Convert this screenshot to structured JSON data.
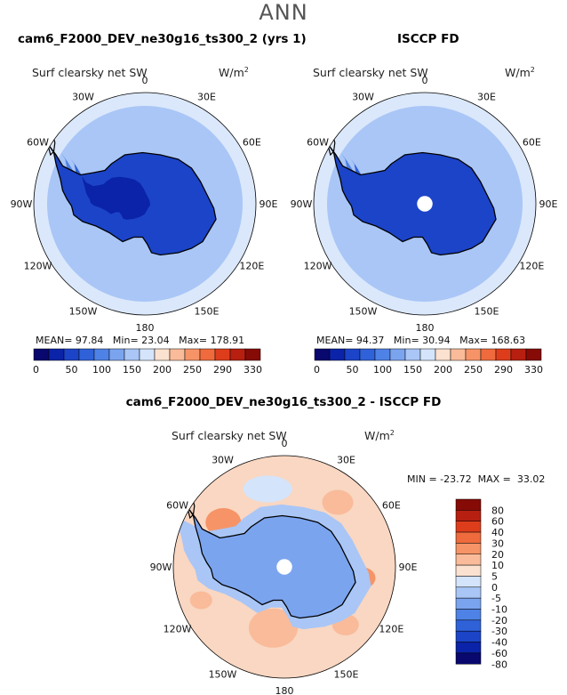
{
  "season": "ANN",
  "colors": {
    "abs_scale": [
      "#08086e",
      "#0a23a8",
      "#1c44c8",
      "#2f62d9",
      "#4f82e6",
      "#7ba4ef",
      "#a9c6f6",
      "#d4e4fb",
      "#fbe1cf",
      "#f9bb9a",
      "#f69467",
      "#ef6a3c",
      "#de3d1c",
      "#b71f10",
      "#860b06"
    ],
    "diff_scale": [
      "#08086e",
      "#0a23a8",
      "#1c44c8",
      "#2f62d9",
      "#4f82e6",
      "#7ba4ef",
      "#a9c6f6",
      "#d4e4fb",
      "#fbe1cf",
      "#f9bb9a",
      "#f69467",
      "#ef6a3c",
      "#de3d1c",
      "#b71f10",
      "#860b06"
    ],
    "coastline": "#000000"
  },
  "chart_data": [
    {
      "type": "heatmap",
      "projection": "south-polar-stereographic",
      "title": "cam6_F2000_DEV_ne30g16_ts300_2 (yrs 1)",
      "variable": "Surf clearsky net SW",
      "units": "W/m",
      "units_sup": "2",
      "lon_labels": [
        "0",
        "30E",
        "60E",
        "90E",
        "120E",
        "150E",
        "180",
        "150W",
        "120W",
        "90W",
        "60W",
        "30W"
      ],
      "stats": {
        "mean_label": "MEAN=",
        "mean": "97.84",
        "min_label": "Min=",
        "min": "23.04",
        "max_label": "Max=",
        "max": "178.91"
      },
      "levels": [
        "0",
        "50",
        "100",
        "150",
        "200",
        "250",
        "290",
        "330"
      ]
    },
    {
      "type": "heatmap",
      "projection": "south-polar-stereographic",
      "title": "ISCCP FD",
      "variable": "Surf clearsky net SW",
      "units": "W/m",
      "units_sup": "2",
      "lon_labels": [
        "0",
        "30E",
        "60E",
        "90E",
        "120E",
        "150E",
        "180",
        "150W",
        "120W",
        "90W",
        "60W",
        "30W"
      ],
      "stats": {
        "mean_label": "MEAN=",
        "mean": "94.37",
        "min_label": "Min=",
        "min": "30.94",
        "max_label": "Max=",
        "max": "168.63"
      },
      "levels": [
        "0",
        "50",
        "100",
        "150",
        "200",
        "250",
        "290",
        "330"
      ]
    },
    {
      "type": "heatmap",
      "projection": "south-polar-stereographic",
      "title": "cam6_F2000_DEV_ne30g16_ts300_2 - ISCCP FD",
      "variable": "Surf clearsky net SW",
      "units": "W/m",
      "units_sup": "2",
      "lon_labels": [
        "0",
        "30E",
        "60E",
        "90E",
        "120E",
        "150E",
        "180",
        "150W",
        "120W",
        "90W",
        "60W",
        "30W"
      ],
      "stats_text": "MIN = -23.72  MAX =  33.02",
      "levels": [
        "80",
        "60",
        "40",
        "30",
        "20",
        "10",
        "5",
        "0",
        "-5",
        "-10",
        "-20",
        "-30",
        "-40",
        "-60",
        "-80"
      ]
    }
  ]
}
